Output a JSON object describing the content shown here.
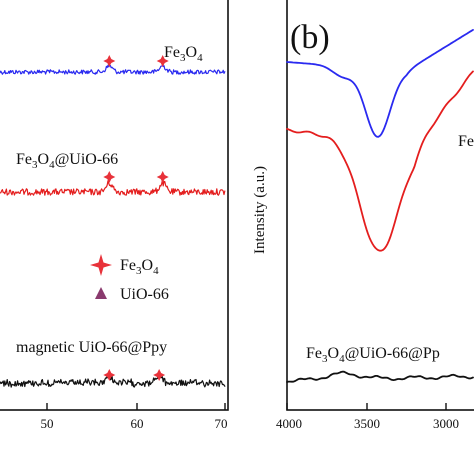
{
  "chart_data": [
    {
      "panel": "a",
      "type": "line",
      "x_tick_labels": [
        "50",
        "60",
        "70"
      ],
      "x_ticks": [
        50,
        60,
        70
      ],
      "xlim": [
        44,
        70
      ],
      "legend": [
        {
          "marker": "star-4",
          "color": "#e8323a",
          "label_base": "Fe",
          "label_sub1": "3",
          "label_mid": "O",
          "label_sub2": "4"
        },
        {
          "marker": "triangle",
          "color": "#8a3a6e",
          "label": "UiO-66"
        }
      ],
      "series": [
        {
          "label_base": "Fe",
          "label_sub1": "3",
          "label_mid": "O",
          "label_sub2": "4",
          "label_tail": "",
          "color": "#2a2af0",
          "peaks": [
            57,
            63
          ]
        },
        {
          "label_base": "Fe",
          "label_sub1": "3",
          "label_mid": "O",
          "label_sub2": "4",
          "label_tail": "@UiO-66",
          "color": "#e41e1e",
          "peaks": [
            57,
            63
          ]
        },
        {
          "label": "magnetic UiO-66@Ppy",
          "color": "#111111",
          "peaks": [
            57,
            62.6
          ]
        }
      ]
    },
    {
      "panel": "b",
      "type": "line",
      "panel_label": "(b)",
      "ylabel": "Intensity (a.u.)",
      "x_tick_labels": [
        "4000",
        "3500",
        "3000"
      ],
      "x_ticks": [
        4000,
        3500,
        3000
      ],
      "xlim": [
        4000,
        2740
      ],
      "x_reversed": true,
      "series": [
        {
          "label_clipped": "Fe",
          "color": "#2a2af0",
          "minimum_at": 3430
        },
        {
          "color": "#e41e1e",
          "minimum_at": 3420
        },
        {
          "label_base": "Fe",
          "label_sub1": "3",
          "label_mid": "O",
          "label_sub2": "4",
          "label_tail": "@UiO-66@Pp",
          "color": "#111111"
        }
      ]
    }
  ]
}
